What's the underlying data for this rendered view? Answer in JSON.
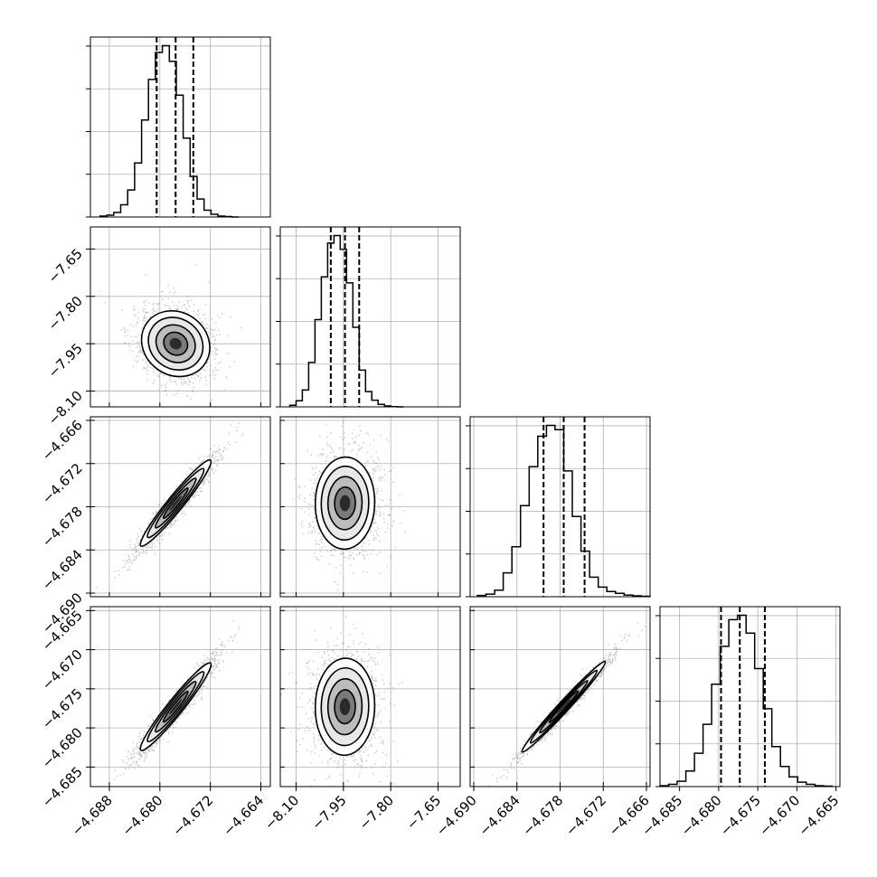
{
  "chart_data": {
    "type": "corner",
    "n_params": 4,
    "grid": true,
    "colors": {
      "line": "#000000",
      "grid": "#b0b0b0",
      "scatter": "#808080"
    },
    "params": [
      {
        "range": [
          -4.691,
          -4.6625
        ],
        "ticks": [
          -4.688,
          -4.68,
          -4.672,
          -4.664
        ],
        "tick_labels": [
          "−4.688",
          "−4.680",
          "−4.672",
          "−4.664"
        ],
        "median": -4.6775,
        "q16": -4.6805,
        "q84": -4.6747,
        "std": 0.0025
      },
      {
        "range": [
          -8.15,
          -7.58
        ],
        "ticks": [
          -8.1,
          -7.95,
          -7.8,
          -7.65
        ],
        "tick_labels": [
          "−8.10",
          "−7.95",
          "−7.80",
          "−7.65"
        ],
        "median": -7.945,
        "q16": -7.99,
        "q84": -7.9,
        "std": 0.047
      },
      {
        "range": [
          -4.6905,
          -4.6655
        ],
        "ticks": [
          -4.69,
          -4.684,
          -4.678,
          -4.672,
          -4.666
        ],
        "tick_labels": [
          "−4.690",
          "−4.684",
          "−4.678",
          "−4.672",
          "−4.666"
        ],
        "median": -4.6775,
        "q16": -4.6803,
        "q84": -4.6746,
        "std": 0.0028
      },
      {
        "range": [
          -4.6875,
          -4.6645
        ],
        "ticks": [
          -4.685,
          -4.68,
          -4.675,
          -4.67,
          -4.665
        ],
        "tick_labels": [
          "−4.685",
          "−4.680",
          "−4.675",
          "−4.670",
          "−4.665"
        ],
        "median": -4.6773,
        "q16": -4.6797,
        "q84": -4.6741,
        "std": 0.0028
      }
    ],
    "histograms": [
      {
        "param": 0,
        "edges": [
          -4.6895,
          -4.6884,
          -4.6873,
          -4.6862,
          -4.6851,
          -4.684,
          -4.6829,
          -4.6818,
          -4.6807,
          -4.6796,
          -4.6785,
          -4.6774,
          -4.6763,
          -4.6752,
          -4.6741,
          -4.673,
          -4.6719,
          -4.6708,
          -4.6697,
          -4.6686,
          -4.6675
        ],
        "counts": [
          2,
          4,
          10,
          27,
          60,
          120,
          215,
          305,
          365,
          380,
          345,
          270,
          175,
          90,
          40,
          15,
          6,
          2,
          1,
          0
        ]
      },
      {
        "param": 1,
        "edges": [
          -8.12,
          -8.1,
          -8.08,
          -8.06,
          -8.04,
          -8.02,
          -8.0,
          -7.98,
          -7.96,
          -7.94,
          -7.92,
          -7.9,
          -7.88,
          -7.86,
          -7.84,
          -7.82,
          -7.8,
          -7.78,
          -7.76
        ],
        "counts": [
          5,
          20,
          55,
          145,
          285,
          425,
          535,
          560,
          515,
          405,
          260,
          120,
          50,
          22,
          8,
          3,
          1,
          0
        ]
      },
      {
        "param": 2,
        "edges": [
          -4.6895,
          -4.6883,
          -4.6871,
          -4.6859,
          -4.6847,
          -4.6835,
          -4.6823,
          -4.6811,
          -4.6799,
          -4.6787,
          -4.6775,
          -4.6763,
          -4.6751,
          -4.6739,
          -4.6727,
          -4.6715,
          -4.6703,
          -4.6691,
          -4.6679,
          -4.6667,
          -4.6655
        ],
        "counts": [
          3,
          6,
          15,
          55,
          115,
          210,
          300,
          370,
          395,
          385,
          290,
          185,
          105,
          45,
          22,
          12,
          8,
          4,
          2,
          1
        ]
      },
      {
        "param": 3,
        "edges": [
          -4.6875,
          -4.6864,
          -4.6853,
          -4.6842,
          -4.6831,
          -4.682,
          -4.6809,
          -4.6798,
          -4.6787,
          -4.6776,
          -4.6765,
          -4.6754,
          -4.6743,
          -4.6732,
          -4.6721,
          -4.671,
          -4.6699,
          -4.6688,
          -4.6677,
          -4.6666,
          -4.6655
        ],
        "counts": [
          2,
          5,
          12,
          35,
          75,
          140,
          230,
          315,
          375,
          385,
          345,
          265,
          175,
          90,
          45,
          22,
          10,
          5,
          2,
          1
        ]
      }
    ],
    "pairs": [
      {
        "x": 0,
        "y": 1,
        "center": [
          -4.6775,
          -7.95
        ],
        "corr": -0.12,
        "spread": [
          0.0027,
          0.052
        ]
      },
      {
        "x": 0,
        "y": 2,
        "center": [
          -4.6775,
          -4.6775
        ],
        "corr": 0.96,
        "spread": [
          0.0028,
          0.003
        ]
      },
      {
        "x": 1,
        "y": 2,
        "center": [
          -7.945,
          -4.6775
        ],
        "corr": 0.02,
        "spread": [
          0.047,
          0.0032
        ]
      },
      {
        "x": 0,
        "y": 3,
        "center": [
          -4.6775,
          -4.6773
        ],
        "corr": 0.96,
        "spread": [
          0.0028,
          0.0028
        ]
      },
      {
        "x": 1,
        "y": 3,
        "center": [
          -7.945,
          -4.6773
        ],
        "corr": 0.02,
        "spread": [
          0.047,
          0.0031
        ]
      },
      {
        "x": 2,
        "y": 3,
        "center": [
          -4.6775,
          -4.6773
        ],
        "corr": 0.985,
        "spread": [
          0.0029,
          0.0029
        ]
      }
    ]
  }
}
